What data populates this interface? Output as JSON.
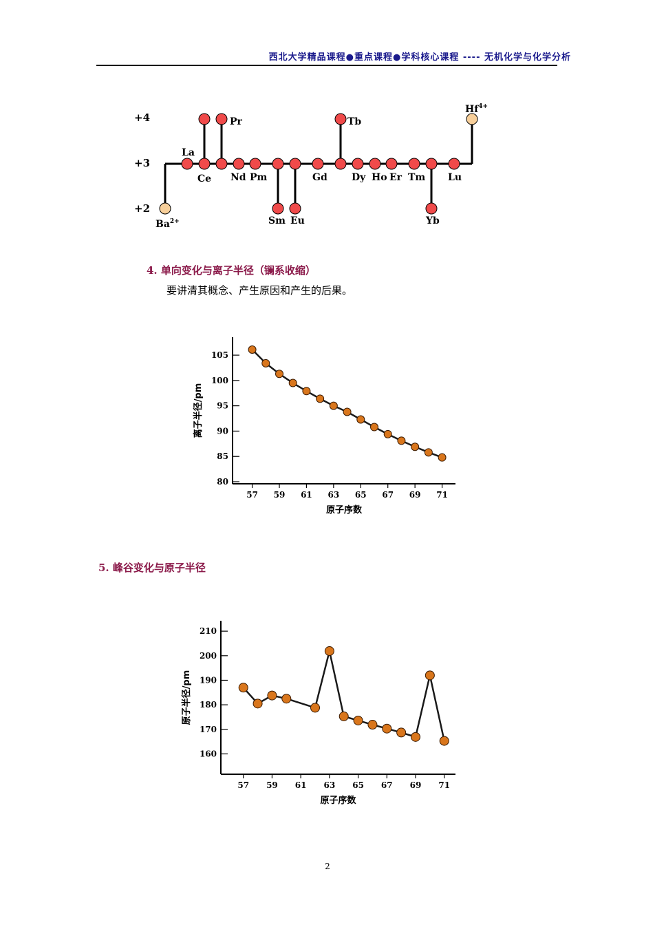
{
  "header": {
    "title": "西北大学精品课程●重点课程●学科核心课程 ---- 无机化学与化学分析"
  },
  "oxidation_diagram": {
    "levels": [
      "+4",
      "+3",
      "+2"
    ],
    "elements": [
      {
        "symbol": "La",
        "states": [
          3
        ]
      },
      {
        "symbol": "Ce",
        "states": [
          3,
          4
        ]
      },
      {
        "symbol": "Pr",
        "states": [
          3,
          4
        ]
      },
      {
        "symbol": "Nd",
        "states": [
          3
        ]
      },
      {
        "symbol": "Pm",
        "states": [
          3
        ]
      },
      {
        "symbol": "Sm",
        "states": [
          3,
          2
        ]
      },
      {
        "symbol": "Eu",
        "states": [
          3,
          2
        ]
      },
      {
        "symbol": "Gd",
        "states": [
          3
        ]
      },
      {
        "symbol": "Tb",
        "states": [
          3,
          4
        ]
      },
      {
        "symbol": "Dy",
        "states": [
          3
        ]
      },
      {
        "symbol": "Ho",
        "states": [
          3
        ]
      },
      {
        "symbol": "Er",
        "states": [
          3
        ]
      },
      {
        "symbol": "Tm",
        "states": [
          3
        ]
      },
      {
        "symbol": "Yb",
        "states": [
          3,
          2
        ]
      },
      {
        "symbol": "Lu",
        "states": [
          3
        ]
      }
    ],
    "ba_label": "Ba",
    "ba_charge": "2+",
    "hf_label": "Hf",
    "hf_charge": "4+",
    "colors": {
      "lanthanide": "#f04a4a",
      "boundary": "#f7cf9a"
    }
  },
  "section4": {
    "title": "4.  单向变化与离子半径（镧系收缩）",
    "body": "要讲清其概念、产生原因和产生的后果。"
  },
  "section5": {
    "title": "5.  峰谷变化与原子半径"
  },
  "chart_data": [
    {
      "type": "line",
      "title": "",
      "xlabel": "原子序数",
      "ylabel": "离子半径/pm",
      "xlim": [
        55.5,
        73
      ],
      "ylim": [
        80,
        108
      ],
      "xticks": [
        57,
        59,
        61,
        63,
        65,
        67,
        69,
        71
      ],
      "yticks": [
        80,
        85,
        90,
        95,
        100,
        105
      ],
      "series": [
        {
          "x": [
            57,
            58,
            59,
            60,
            61,
            62,
            63,
            64,
            65,
            66,
            67,
            68,
            69,
            70,
            71
          ],
          "y": [
            106.1,
            103.4,
            101.3,
            99.5,
            97.9,
            96.4,
            95.0,
            93.8,
            92.3,
            90.8,
            89.4,
            88.1,
            86.9,
            85.8,
            84.8
          ]
        }
      ],
      "marker_color": "#d9761c"
    },
    {
      "type": "line",
      "title": "",
      "xlabel": "原子序数",
      "ylabel": "原子半径/pm",
      "xlim": [
        55,
        72.5
      ],
      "ylim": [
        152,
        212
      ],
      "xticks": [
        57,
        59,
        61,
        63,
        65,
        67,
        69,
        71
      ],
      "yticks": [
        160,
        170,
        180,
        190,
        200,
        210
      ],
      "series": [
        {
          "x": [
            57,
            58,
            59,
            60,
            62,
            63,
            64,
            65,
            66,
            67,
            68,
            69,
            70,
            71
          ],
          "y": [
            187.0,
            180.5,
            183.8,
            182.5,
            178.8,
            201.9,
            175.3,
            173.6,
            171.9,
            170.3,
            168.7,
            166.9,
            192.0,
            165.3
          ]
        }
      ],
      "marker_color": "#d9761c"
    }
  ],
  "page": {
    "number": "2"
  }
}
